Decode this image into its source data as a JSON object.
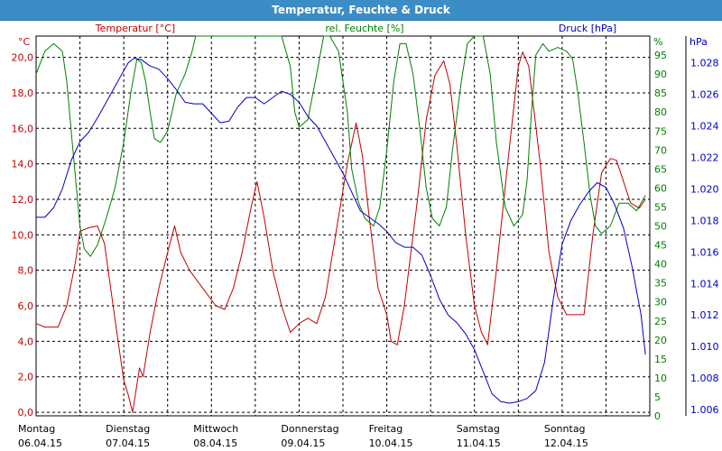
{
  "window": {
    "title": "Temperatur, Feuchte & Druck"
  },
  "chart_data": {
    "type": "line",
    "title": "Temperatur, Feuchte & Druck",
    "x_labels": [
      {
        "day": "Montag",
        "date": "06.04.15"
      },
      {
        "day": "Dienstag",
        "date": "07.04.15"
      },
      {
        "day": "Mittwoch",
        "date": "08.04.15"
      },
      {
        "day": "Donnerstag",
        "date": "09.04.15"
      },
      {
        "day": "Freitag",
        "date": "10.04.15"
      },
      {
        "day": "Samstag",
        "date": "11.04.15"
      },
      {
        "day": "Sonntag",
        "date": "12.04.15"
      }
    ],
    "x_unit_note": "x values are days: 0 = 06.04.15 00:00, 1 = 07.04.15 00:00",
    "grid": true,
    "axes": {
      "temperature": {
        "label": "Temperatur [°C]",
        "unit": "°C",
        "side": "left",
        "color": "#c00000",
        "ylim": [
          -0.2,
          21.2
        ],
        "ticks": [
          0,
          2,
          4,
          6,
          8,
          10,
          12,
          14,
          16,
          18,
          20
        ],
        "tick_labels": [
          "0,0",
          "2,0",
          "4,0",
          "6,0",
          "8,0",
          "10,0",
          "12,0",
          "14,0",
          "16,0",
          "18,0",
          "20,0"
        ]
      },
      "humidity": {
        "label": "rel. Feuchte [%]",
        "unit": "%",
        "side": "right",
        "color": "#008000",
        "ylim": [
          0,
          100
        ],
        "ticks": [
          0,
          5,
          10,
          15,
          20,
          25,
          30,
          35,
          40,
          45,
          50,
          55,
          60,
          65,
          70,
          75,
          80,
          85,
          90,
          95
        ],
        "tick_labels": [
          "0",
          "5",
          "10",
          "15",
          "20",
          "25",
          "30",
          "35",
          "40",
          "45",
          "50",
          "55",
          "60",
          "65",
          "70",
          "75",
          "80",
          "85",
          "90",
          "95"
        ]
      },
      "pressure": {
        "label": "Druck [hPa]",
        "unit": "hPa",
        "side": "right",
        "color": "#0000c0",
        "ylim": [
          1005.6,
          1029.7
        ],
        "ticks": [
          1006,
          1008,
          1010,
          1012,
          1014,
          1016,
          1018,
          1020,
          1022,
          1024,
          1026,
          1028
        ],
        "tick_labels": [
          "1.006",
          "1.008",
          "1.010",
          "1.012",
          "1.014",
          "1.016",
          "1.018",
          "1.020",
          "1.022",
          "1.024",
          "1.026",
          "1.028"
        ]
      }
    },
    "series": [
      {
        "name": "Temperatur [°C]",
        "axis": "temperature",
        "color": "#c00000",
        "points": [
          [
            0.0,
            5.0
          ],
          [
            0.1,
            4.8
          ],
          [
            0.25,
            4.8
          ],
          [
            0.35,
            6.0
          ],
          [
            0.45,
            8.5
          ],
          [
            0.5,
            10.2
          ],
          [
            0.6,
            10.4
          ],
          [
            0.7,
            10.5
          ],
          [
            0.78,
            9.5
          ],
          [
            0.85,
            7.0
          ],
          [
            0.95,
            3.5
          ],
          [
            1.0,
            1.8
          ],
          [
            1.05,
            1.0
          ],
          [
            1.1,
            0.0
          ],
          [
            1.18,
            2.5
          ],
          [
            1.22,
            2.0
          ],
          [
            1.3,
            4.5
          ],
          [
            1.4,
            7.0
          ],
          [
            1.5,
            9.0
          ],
          [
            1.58,
            10.5
          ],
          [
            1.65,
            9.0
          ],
          [
            1.75,
            8.0
          ],
          [
            1.9,
            7.0
          ],
          [
            2.05,
            6.0
          ],
          [
            2.15,
            5.8
          ],
          [
            2.25,
            7.0
          ],
          [
            2.35,
            9.0
          ],
          [
            2.45,
            11.5
          ],
          [
            2.52,
            13.0
          ],
          [
            2.6,
            11.0
          ],
          [
            2.7,
            8.0
          ],
          [
            2.8,
            6.0
          ],
          [
            2.9,
            4.5
          ],
          [
            3.0,
            5.0
          ],
          [
            3.1,
            5.3
          ],
          [
            3.2,
            5.0
          ],
          [
            3.3,
            6.5
          ],
          [
            3.45,
            11.0
          ],
          [
            3.55,
            14.0
          ],
          [
            3.65,
            16.3
          ],
          [
            3.72,
            14.5
          ],
          [
            3.8,
            11.0
          ],
          [
            3.9,
            7.0
          ],
          [
            4.0,
            5.5
          ],
          [
            4.05,
            4.0
          ],
          [
            4.12,
            3.8
          ],
          [
            4.2,
            6.0
          ],
          [
            4.35,
            12.0
          ],
          [
            4.45,
            16.5
          ],
          [
            4.55,
            19.0
          ],
          [
            4.65,
            19.8
          ],
          [
            4.72,
            18.5
          ],
          [
            4.8,
            15.0
          ],
          [
            4.9,
            10.0
          ],
          [
            5.0,
            6.0
          ],
          [
            5.08,
            4.5
          ],
          [
            5.15,
            3.8
          ],
          [
            5.25,
            8.0
          ],
          [
            5.4,
            15.0
          ],
          [
            5.5,
            19.5
          ],
          [
            5.55,
            20.3
          ],
          [
            5.62,
            19.5
          ],
          [
            5.75,
            14.0
          ],
          [
            5.85,
            9.0
          ],
          [
            5.95,
            6.5
          ],
          [
            6.05,
            5.5
          ],
          [
            6.15,
            5.5
          ],
          [
            6.25,
            5.5
          ],
          [
            6.35,
            10.0
          ],
          [
            6.45,
            13.5
          ],
          [
            6.55,
            14.3
          ],
          [
            6.62,
            14.2
          ],
          [
            6.7,
            13.0
          ],
          [
            6.78,
            11.8
          ],
          [
            6.88,
            11.5
          ],
          [
            6.95,
            12.0
          ]
        ]
      },
      {
        "name": "rel. Feuchte [%]",
        "axis": "humidity",
        "color": "#008000",
        "points": [
          [
            0.0,
            90
          ],
          [
            0.1,
            96
          ],
          [
            0.2,
            98
          ],
          [
            0.3,
            96
          ],
          [
            0.35,
            88
          ],
          [
            0.42,
            70
          ],
          [
            0.5,
            50
          ],
          [
            0.55,
            44
          ],
          [
            0.62,
            42
          ],
          [
            0.7,
            45
          ],
          [
            0.8,
            52
          ],
          [
            0.9,
            60
          ],
          [
            1.0,
            72
          ],
          [
            1.08,
            85
          ],
          [
            1.15,
            94
          ],
          [
            1.2,
            93
          ],
          [
            1.25,
            88
          ],
          [
            1.3,
            80
          ],
          [
            1.35,
            73
          ],
          [
            1.42,
            72
          ],
          [
            1.5,
            75
          ],
          [
            1.55,
            80
          ],
          [
            1.6,
            85
          ],
          [
            1.7,
            90
          ],
          [
            1.78,
            96
          ],
          [
            1.82,
            100
          ],
          [
            2.8,
            100
          ],
          [
            2.9,
            92
          ],
          [
            2.95,
            80
          ],
          [
            3.0,
            76
          ],
          [
            3.1,
            78
          ],
          [
            3.2,
            90
          ],
          [
            3.28,
            100
          ],
          [
            3.35,
            100
          ],
          [
            3.45,
            96
          ],
          [
            3.55,
            80
          ],
          [
            3.6,
            65
          ],
          [
            3.68,
            56
          ],
          [
            3.75,
            52
          ],
          [
            3.85,
            50
          ],
          [
            3.92,
            55
          ],
          [
            4.0,
            70
          ],
          [
            4.08,
            88
          ],
          [
            4.15,
            98
          ],
          [
            4.22,
            98
          ],
          [
            4.3,
            90
          ],
          [
            4.38,
            75
          ],
          [
            4.45,
            60
          ],
          [
            4.52,
            52
          ],
          [
            4.6,
            50
          ],
          [
            4.68,
            55
          ],
          [
            4.75,
            70
          ],
          [
            4.85,
            88
          ],
          [
            4.92,
            98
          ],
          [
            5.0,
            100
          ],
          [
            5.1,
            100
          ],
          [
            5.18,
            90
          ],
          [
            5.25,
            72
          ],
          [
            5.35,
            55
          ],
          [
            5.45,
            50
          ],
          [
            5.55,
            53
          ],
          [
            5.6,
            62
          ],
          [
            5.65,
            80
          ],
          [
            5.7,
            95
          ],
          [
            5.78,
            98
          ],
          [
            5.85,
            96
          ],
          [
            5.95,
            97
          ],
          [
            6.05,
            96
          ],
          [
            6.12,
            94
          ],
          [
            6.18,
            85
          ],
          [
            6.25,
            72
          ],
          [
            6.32,
            58
          ],
          [
            6.38,
            50
          ],
          [
            6.45,
            48
          ],
          [
            6.55,
            50
          ],
          [
            6.65,
            56
          ],
          [
            6.75,
            56
          ],
          [
            6.85,
            54
          ],
          [
            6.95,
            58
          ]
        ]
      },
      {
        "name": "Druck [hPa]",
        "axis": "pressure",
        "color": "#0000c0",
        "points": [
          [
            0.0,
            1018.2
          ],
          [
            0.1,
            1018.2
          ],
          [
            0.2,
            1018.8
          ],
          [
            0.3,
            1020.0
          ],
          [
            0.4,
            1021.8
          ],
          [
            0.5,
            1023.0
          ],
          [
            0.6,
            1023.6
          ],
          [
            0.7,
            1024.5
          ],
          [
            0.8,
            1025.5
          ],
          [
            0.9,
            1026.5
          ],
          [
            1.0,
            1027.5
          ],
          [
            1.05,
            1028.0
          ],
          [
            1.12,
            1028.3
          ],
          [
            1.2,
            1028.2
          ],
          [
            1.3,
            1027.8
          ],
          [
            1.4,
            1027.6
          ],
          [
            1.5,
            1027.0
          ],
          [
            1.6,
            1026.3
          ],
          [
            1.7,
            1025.5
          ],
          [
            1.8,
            1025.4
          ],
          [
            1.9,
            1025.4
          ],
          [
            2.0,
            1024.8
          ],
          [
            2.1,
            1024.2
          ],
          [
            2.2,
            1024.3
          ],
          [
            2.3,
            1025.2
          ],
          [
            2.4,
            1025.8
          ],
          [
            2.5,
            1025.8
          ],
          [
            2.6,
            1025.4
          ],
          [
            2.7,
            1025.8
          ],
          [
            2.8,
            1026.2
          ],
          [
            2.9,
            1026.0
          ],
          [
            3.0,
            1025.5
          ],
          [
            3.1,
            1024.6
          ],
          [
            3.2,
            1024.0
          ],
          [
            3.3,
            1023.0
          ],
          [
            3.4,
            1022.0
          ],
          [
            3.5,
            1021.0
          ],
          [
            3.6,
            1019.8
          ],
          [
            3.7,
            1018.6
          ],
          [
            3.8,
            1018.2
          ],
          [
            3.9,
            1017.8
          ],
          [
            4.0,
            1017.3
          ],
          [
            4.1,
            1016.6
          ],
          [
            4.2,
            1016.3
          ],
          [
            4.3,
            1016.3
          ],
          [
            4.4,
            1015.8
          ],
          [
            4.5,
            1014.5
          ],
          [
            4.6,
            1013.0
          ],
          [
            4.7,
            1012.0
          ],
          [
            4.8,
            1011.5
          ],
          [
            4.9,
            1010.8
          ],
          [
            5.0,
            1009.8
          ],
          [
            5.1,
            1008.4
          ],
          [
            5.2,
            1007.0
          ],
          [
            5.3,
            1006.5
          ],
          [
            5.4,
            1006.4
          ],
          [
            5.5,
            1006.5
          ],
          [
            5.6,
            1006.7
          ],
          [
            5.7,
            1007.2
          ],
          [
            5.8,
            1009.0
          ],
          [
            5.9,
            1013.0
          ],
          [
            6.0,
            1016.5
          ],
          [
            6.1,
            1018.0
          ],
          [
            6.2,
            1019.0
          ],
          [
            6.3,
            1019.8
          ],
          [
            6.4,
            1020.4
          ],
          [
            6.5,
            1020.1
          ],
          [
            6.6,
            1019.0
          ],
          [
            6.7,
            1017.5
          ],
          [
            6.8,
            1015.0
          ],
          [
            6.9,
            1012.0
          ],
          [
            6.95,
            1009.5
          ]
        ]
      }
    ]
  }
}
